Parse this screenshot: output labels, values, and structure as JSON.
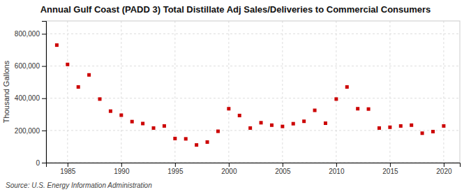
{
  "chart_data": {
    "type": "scatter",
    "title": "Annual Gulf Coast (PADD 3) Total Distillate Adj Sales/Deliveries to Commercial Consumers",
    "y_label": "Thousand Gallons",
    "source": "Source: U.S. Energy Information Administration",
    "color": "#cc0000",
    "marker": "square",
    "x": [
      1984,
      1985,
      1986,
      1987,
      1988,
      1989,
      1990,
      1991,
      1992,
      1993,
      1994,
      1995,
      1996,
      1997,
      1998,
      1999,
      2000,
      2001,
      2002,
      2003,
      2004,
      2005,
      2006,
      2007,
      2008,
      2009,
      2010,
      2011,
      2012,
      2013,
      2014,
      2015,
      2016,
      2017,
      2018,
      2019,
      2020
    ],
    "values": [
      730000,
      610000,
      470000,
      545000,
      395000,
      320000,
      295000,
      255000,
      243000,
      215000,
      228000,
      150000,
      148000,
      110000,
      128000,
      195000,
      335000,
      293000,
      215000,
      248000,
      233000,
      225000,
      242000,
      257000,
      325000,
      245000,
      395000,
      470000,
      335000,
      333000,
      215000,
      220000,
      228000,
      233000,
      183000,
      193000,
      228000
    ],
    "xlim": [
      1983.0,
      2021.5
    ],
    "ylim": [
      0,
      880000
    ],
    "xticks": [
      1985,
      1990,
      1995,
      2000,
      2005,
      2010,
      2015,
      2020
    ],
    "yticks": [
      0,
      {
        "value": 200000,
        "label": "200,000"
      },
      {
        "value": 400000,
        "label": "400,000"
      },
      {
        "value": 600000,
        "label": "600,000"
      },
      {
        "value": 800000,
        "label": "800,000"
      }
    ],
    "grid": true
  }
}
